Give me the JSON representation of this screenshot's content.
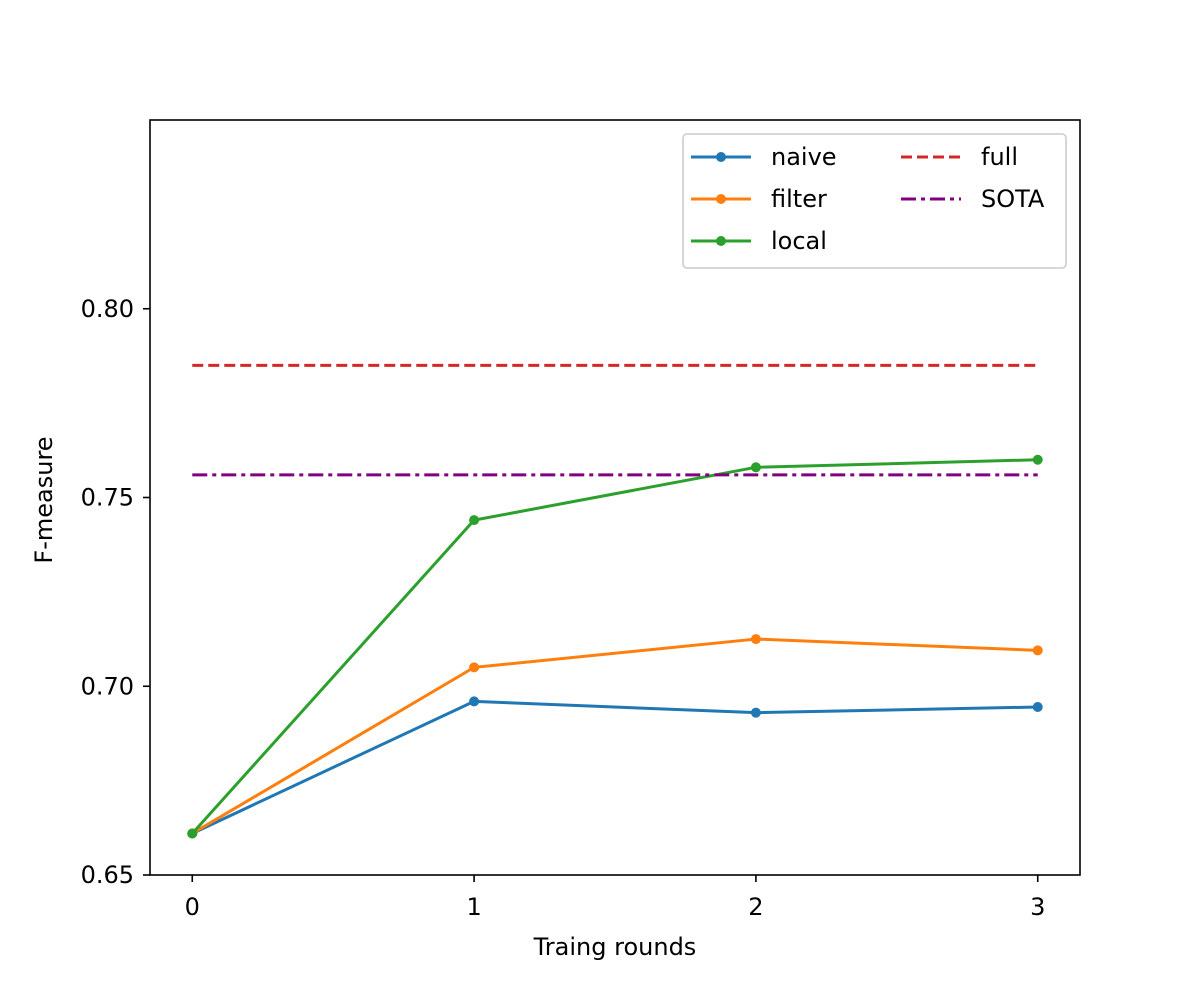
{
  "chart_data": {
    "type": "line",
    "title": "",
    "xlabel": "Traing rounds",
    "ylabel": "F-measure",
    "x": [
      0,
      1,
      2,
      3
    ],
    "xticks": [
      "0",
      "1",
      "2",
      "3"
    ],
    "yticks": [
      "0.65",
      "0.70",
      "0.75",
      "0.80"
    ],
    "xlim": [
      -0.15,
      3.15
    ],
    "ylim": [
      0.65,
      0.85
    ],
    "grid": false,
    "legend_position": "top-right",
    "legend_columns": 2,
    "series": [
      {
        "name": "naive",
        "values": [
          0.661,
          0.696,
          0.693,
          0.6945
        ],
        "color": "#1f77b4",
        "style": "solid",
        "marker": true
      },
      {
        "name": "filter",
        "values": [
          0.661,
          0.705,
          0.7125,
          0.7095
        ],
        "color": "#ff7f0e",
        "style": "solid",
        "marker": true
      },
      {
        "name": "local",
        "values": [
          0.661,
          0.744,
          0.758,
          0.76
        ],
        "color": "#2ca02c",
        "style": "solid",
        "marker": true
      },
      {
        "name": "full",
        "values": [
          0.785,
          0.785,
          0.785,
          0.785
        ],
        "color": "#d62728",
        "style": "dashed",
        "marker": false
      },
      {
        "name": "SOTA",
        "values": [
          0.756,
          0.756,
          0.756,
          0.756
        ],
        "color": "#800080",
        "style": "dashdot",
        "marker": false
      }
    ]
  }
}
